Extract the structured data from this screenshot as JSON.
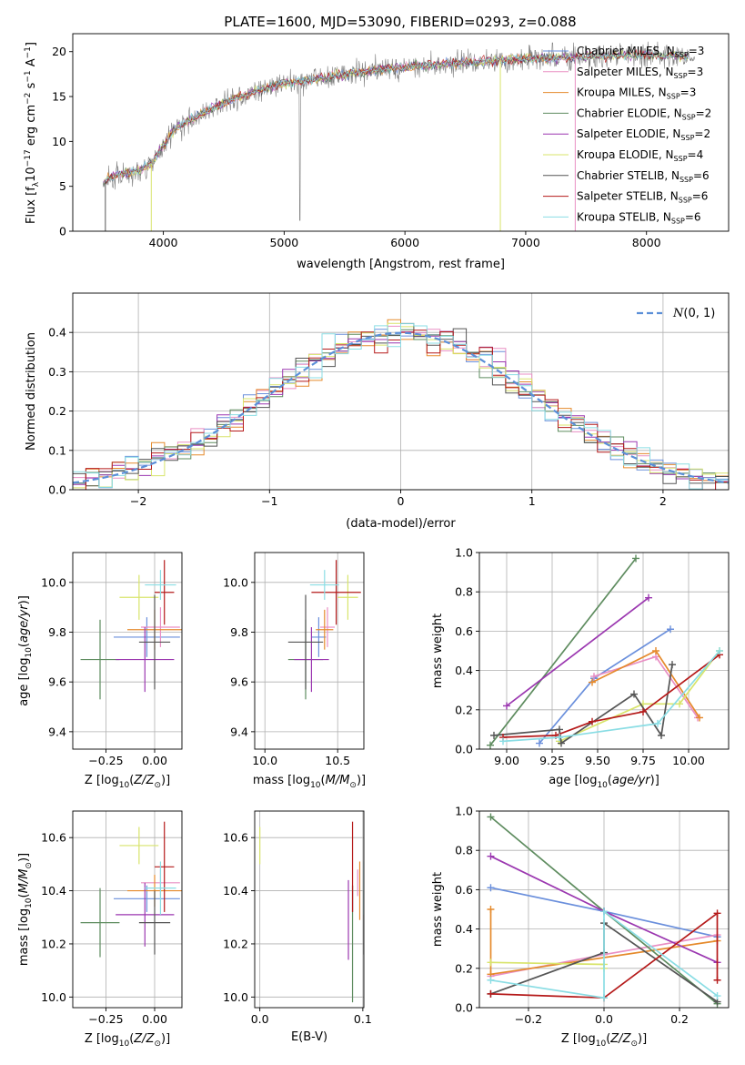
{
  "figure": {
    "title": "PLATE=1600, MJD=53090, FIBERID=0293, z=0.088",
    "symbols": {
      "age_unit": "age/yr",
      "mass_unit": "M/M",
      "z_unit": "Z/Z"
    }
  },
  "colors": {
    "data": "#808080",
    "models": [
      "#6a8fdc",
      "#e98fc4",
      "#e58a2c",
      "#5e8c5f",
      "#9b37b0",
      "#d8e46b",
      "#555555",
      "#b51a1a",
      "#8adde4"
    ]
  },
  "chart_data": [
    {
      "type": "line",
      "panel": "spectrum",
      "title": "PLATE=1600, MJD=53090, FIBERID=0293, z=0.088",
      "xlabel": "wavelength [Angstrom, rest frame]",
      "ylabel": "Flux [f_λ 10^-17 erg cm^-2 s^-1 A^-1]",
      "xlim": [
        3250,
        8680
      ],
      "ylim": [
        0,
        22
      ],
      "xticks": [
        4000,
        5000,
        6000,
        7000,
        8000
      ],
      "yticks": [
        0,
        5,
        10,
        15,
        20
      ],
      "grid": false,
      "legend_placement": "right",
      "continuum": {
        "x": [
          3500,
          3600,
          3700,
          3800,
          3900,
          4000,
          4100,
          4200,
          4300,
          4500,
          4700,
          5000,
          5300,
          5500,
          6000,
          6500,
          7000,
          7300,
          7500,
          7800,
          8000,
          8200,
          8400
        ],
        "y": [
          5.5,
          6.2,
          6.5,
          6.8,
          7.5,
          9.5,
          11.5,
          12.2,
          13.0,
          14.3,
          15.3,
          16.5,
          17.0,
          17.5,
          18.3,
          18.8,
          19.2,
          19.3,
          19.4,
          19.6,
          19.6,
          19.5,
          19.4
        ]
      },
      "series": [
        {
          "name": "Chabrier MILES",
          "nssp": "3"
        },
        {
          "name": "Salpeter MILES",
          "nssp": "3"
        },
        {
          "name": "Kroupa MILES",
          "nssp": "3"
        },
        {
          "name": "Chabrier ELODIE",
          "nssp": "2"
        },
        {
          "name": "Salpeter ELODIE",
          "nssp": "2"
        },
        {
          "name": "Kroupa ELODIE",
          "nssp": "4"
        },
        {
          "name": "Chabrier STELIB",
          "nssp": "6"
        },
        {
          "name": "Salpeter STELIB",
          "nssp": "6"
        },
        {
          "name": "Kroupa STELIB",
          "nssp": "6"
        }
      ]
    },
    {
      "type": "line",
      "panel": "residuals",
      "xlabel": "(data-model)/error",
      "ylabel": "Normed distribution",
      "xlim": [
        -2.5,
        2.5
      ],
      "ylim": [
        0,
        0.5
      ],
      "xticks": [
        -2,
        -1,
        0,
        1,
        2
      ],
      "xticklabels": [
        "−2",
        "−1",
        "0",
        "1",
        "2"
      ],
      "yticks": [
        0.0,
        0.1,
        0.2,
        0.3,
        0.4
      ],
      "yticklabels": [
        "0.0",
        "0.1",
        "0.2",
        "0.3",
        "0.4"
      ],
      "grid": true,
      "legend_placement": "top-right",
      "legend": "N(0, 1)",
      "bin_width": 0.1
    },
    {
      "type": "scatter",
      "panel": "Z-age",
      "xlabel": "Z [log10(Z/Z⊙)]",
      "ylabel": "age [log10(age/yr)]",
      "xlim": [
        -0.42,
        0.14
      ],
      "ylim": [
        9.33,
        10.12
      ],
      "xticks": [
        -0.25,
        0.0
      ],
      "xticklabels": [
        "−0.25",
        "0.00"
      ],
      "yticks": [
        9.4,
        9.6,
        9.8,
        10.0
      ],
      "yticklabels": [
        "9.4",
        "9.6",
        "9.8",
        "10.0"
      ],
      "grid": true,
      "points": [
        {
          "x": -0.04,
          "y": 9.78,
          "xerr": 0.17,
          "yerr": 0.08
        },
        {
          "x": 0.03,
          "y": 9.82,
          "xerr": 0.1,
          "yerr": 0.08
        },
        {
          "x": 0.0,
          "y": 9.81,
          "xerr": 0.14,
          "yerr": 0.08
        },
        {
          "x": -0.28,
          "y": 9.69,
          "xerr": 0.1,
          "yerr": 0.16
        },
        {
          "x": -0.05,
          "y": 9.69,
          "xerr": 0.15,
          "yerr": 0.13
        },
        {
          "x": -0.08,
          "y": 9.94,
          "xerr": 0.1,
          "yerr": 0.09
        },
        {
          "x": 0.0,
          "y": 9.76,
          "xerr": 0.08,
          "yerr": 0.19
        },
        {
          "x": 0.05,
          "y": 9.96,
          "xerr": 0.05,
          "yerr": 0.13
        },
        {
          "x": 0.03,
          "y": 9.99,
          "xerr": 0.08,
          "yerr": 0.06
        }
      ]
    },
    {
      "type": "scatter",
      "panel": "mass-age",
      "xlabel": "mass [log10(M/M⊙)]",
      "ylabel": "",
      "xlim": [
        9.93,
        10.68
      ],
      "ylim": [
        9.33,
        10.12
      ],
      "xticks": [
        10.0,
        10.5
      ],
      "xticklabels": [
        "10.0",
        "10.5"
      ],
      "yticks": [
        9.4,
        9.6,
        9.8,
        10.0
      ],
      "yticklabels": [
        "9.4",
        "9.6",
        "9.8",
        "10.0"
      ],
      "grid": true,
      "points": [
        {
          "x": 10.37,
          "y": 9.78,
          "xerr": 0.05,
          "yerr": 0.08
        },
        {
          "x": 10.43,
          "y": 9.82,
          "xerr": 0.05,
          "yerr": 0.08
        },
        {
          "x": 10.41,
          "y": 9.81,
          "xerr": 0.06,
          "yerr": 0.08
        },
        {
          "x": 10.28,
          "y": 9.69,
          "xerr": 0.12,
          "yerr": 0.16
        },
        {
          "x": 10.32,
          "y": 9.69,
          "xerr": 0.12,
          "yerr": 0.13
        },
        {
          "x": 10.57,
          "y": 9.94,
          "xerr": 0.07,
          "yerr": 0.09
        },
        {
          "x": 10.28,
          "y": 9.76,
          "xerr": 0.12,
          "yerr": 0.19
        },
        {
          "x": 10.49,
          "y": 9.96,
          "xerr": 0.17,
          "yerr": 0.13
        },
        {
          "x": 10.41,
          "y": 9.99,
          "xerr": 0.1,
          "yerr": 0.06
        }
      ]
    },
    {
      "type": "line",
      "panel": "age-weight",
      "xlabel": "age [log10(age/yr)]",
      "ylabel": "mass weight",
      "xlim": [
        8.85,
        10.22
      ],
      "ylim": [
        0,
        1
      ],
      "xticks": [
        9.0,
        9.25,
        9.5,
        9.75,
        10.0
      ],
      "xticklabels": [
        "9.00",
        "9.25",
        "9.50",
        "9.75",
        "10.00"
      ],
      "yticks": [
        0,
        0.2,
        0.4,
        0.6,
        0.8,
        1.0
      ],
      "yticklabels": [
        "0.0",
        "0.2",
        "0.4",
        "0.6",
        "0.8",
        "1.0"
      ],
      "grid": true,
      "series": [
        {
          "x": [
            9.18,
            9.48,
            9.9
          ],
          "y": [
            0.03,
            0.36,
            0.61
          ]
        },
        {
          "x": [
            9.48,
            9.82,
            10.05
          ],
          "y": [
            0.37,
            0.47,
            0.16
          ]
        },
        {
          "x": [
            9.47,
            9.82,
            10.06
          ],
          "y": [
            0.34,
            0.5,
            0.16
          ]
        },
        {
          "x": [
            8.91,
            9.71
          ],
          "y": [
            0.02,
            0.97
          ]
        },
        {
          "x": [
            9.0,
            9.78
          ],
          "y": [
            0.22,
            0.77
          ]
        },
        {
          "x": [
            9.29,
            9.75,
            9.95,
            10.17
          ],
          "y": [
            0.04,
            0.23,
            0.23,
            0.5
          ]
        },
        {
          "x": [
            8.93,
            9.29,
            9.3,
            9.7,
            9.85,
            9.91
          ],
          "y": [
            0.07,
            0.1,
            0.03,
            0.28,
            0.07,
            0.43
          ]
        },
        {
          "x": [
            8.98,
            9.27,
            9.47,
            9.75,
            10.17
          ],
          "y": [
            0.06,
            0.07,
            0.14,
            0.19,
            0.48
          ]
        },
        {
          "x": [
            8.98,
            9.29,
            9.83,
            10.17
          ],
          "y": [
            0.04,
            0.06,
            0.13,
            0.5
          ]
        }
      ]
    },
    {
      "type": "scatter",
      "panel": "Z-mass",
      "xlabel": "Z [log10(Z/Z⊙)]",
      "ylabel": "mass [log10(M/M⊙)]",
      "xlim": [
        -0.42,
        0.14
      ],
      "ylim": [
        9.96,
        10.7
      ],
      "xticks": [
        -0.25,
        0.0
      ],
      "xticklabels": [
        "−0.25",
        "0.00"
      ],
      "yticks": [
        10.0,
        10.2,
        10.4,
        10.6
      ],
      "yticklabels": [
        "10.0",
        "10.2",
        "10.4",
        "10.6"
      ],
      "grid": true,
      "points": [
        {
          "x": -0.04,
          "y": 10.37,
          "xerr": 0.17,
          "yerr": 0.05
        },
        {
          "x": 0.03,
          "y": 10.43,
          "xerr": 0.1,
          "yerr": 0.05
        },
        {
          "x": 0.0,
          "y": 10.4,
          "xerr": 0.14,
          "yerr": 0.06
        },
        {
          "x": -0.28,
          "y": 10.28,
          "xerr": 0.1,
          "yerr": 0.13
        },
        {
          "x": -0.05,
          "y": 10.31,
          "xerr": 0.15,
          "yerr": 0.12
        },
        {
          "x": -0.08,
          "y": 10.57,
          "xerr": 0.1,
          "yerr": 0.07
        },
        {
          "x": 0.0,
          "y": 10.28,
          "xerr": 0.08,
          "yerr": 0.12
        },
        {
          "x": 0.05,
          "y": 10.49,
          "xerr": 0.05,
          "yerr": 0.17
        },
        {
          "x": 0.03,
          "y": 10.41,
          "xerr": 0.08,
          "yerr": 0.1
        }
      ]
    },
    {
      "type": "scatter",
      "panel": "EBV-mass",
      "xlabel": "E(B-V)",
      "ylabel": "",
      "xlim": [
        -0.005,
        0.101
      ],
      "ylim": [
        9.96,
        10.7
      ],
      "xticks": [
        0.0,
        0.1
      ],
      "xticklabels": [
        "0.0",
        "0.1"
      ],
      "yticks": [
        10.0,
        10.2,
        10.4,
        10.6
      ],
      "yticklabels": [
        "10.0",
        "10.2",
        "10.4",
        "10.6"
      ],
      "grid": true,
      "points": [
        {
          "x": 0.09,
          "y": 10.37,
          "yerr": 0.05
        },
        {
          "x": 0.095,
          "y": 10.43,
          "yerr": 0.05
        },
        {
          "x": 0.097,
          "y": 10.4,
          "yerr": 0.11
        },
        {
          "x": 0.09,
          "y": 10.2,
          "yerr": 0.22
        },
        {
          "x": 0.086,
          "y": 10.29,
          "yerr": 0.15
        },
        {
          "x": 0.0,
          "y": 10.57,
          "yerr": 0.07
        },
        {
          "x": 0.101,
          "y": 10.28,
          "yerr": 0.12
        },
        {
          "x": 0.09,
          "y": 10.49,
          "yerr": 0.17
        },
        {
          "x": 0.101,
          "y": 10.41,
          "yerr": 0.1
        }
      ]
    },
    {
      "type": "line",
      "panel": "Z-weight",
      "xlabel": "Z [log10(Z/Z⊙)]",
      "ylabel": "mass weight",
      "xlim": [
        -0.33,
        0.33
      ],
      "ylim": [
        0,
        1
      ],
      "xticks": [
        -0.2,
        0.0,
        0.2
      ],
      "xticklabels": [
        "−0.2",
        "0.0",
        "0.2"
      ],
      "yticks": [
        0,
        0.2,
        0.4,
        0.6,
        0.8,
        1.0
      ],
      "yticklabels": [
        "0.0",
        "0.2",
        "0.4",
        "0.6",
        "0.8",
        "1.0"
      ],
      "grid": true,
      "series": [
        {
          "x": [
            -0.3,
            0.0,
            0.3
          ],
          "y": [
            0.61,
            0.49,
            0.36
          ]
        },
        {
          "x": [
            -0.3,
            0.0,
            0.3
          ],
          "y": [
            0.16,
            0.27,
            0.37
          ]
        },
        {
          "x": [
            -0.3,
            -0.3,
            0.3
          ],
          "y": [
            0.5,
            0.17,
            0.34
          ]
        },
        {
          "x": [
            -0.3,
            0.0,
            0.3
          ],
          "y": [
            0.97,
            0.49,
            0.02
          ]
        },
        {
          "x": [
            -0.3,
            0.0,
            0.3
          ],
          "y": [
            0.77,
            0.49,
            0.23
          ]
        },
        {
          "x": [
            -0.3,
            0.0,
            0.0
          ],
          "y": [
            0.23,
            0.22,
            0.2
          ]
        },
        {
          "x": [
            -0.3,
            0.0,
            0.0,
            0.3
          ],
          "y": [
            0.07,
            0.28,
            0.43,
            0.03
          ]
        },
        {
          "x": [
            -0.3,
            0.0,
            0.3,
            0.3
          ],
          "y": [
            0.07,
            0.05,
            0.48,
            0.14
          ]
        },
        {
          "x": [
            -0.3,
            0.0,
            0.0,
            0.3
          ],
          "y": [
            0.14,
            0.05,
            0.49,
            0.06
          ]
        }
      ]
    }
  ]
}
